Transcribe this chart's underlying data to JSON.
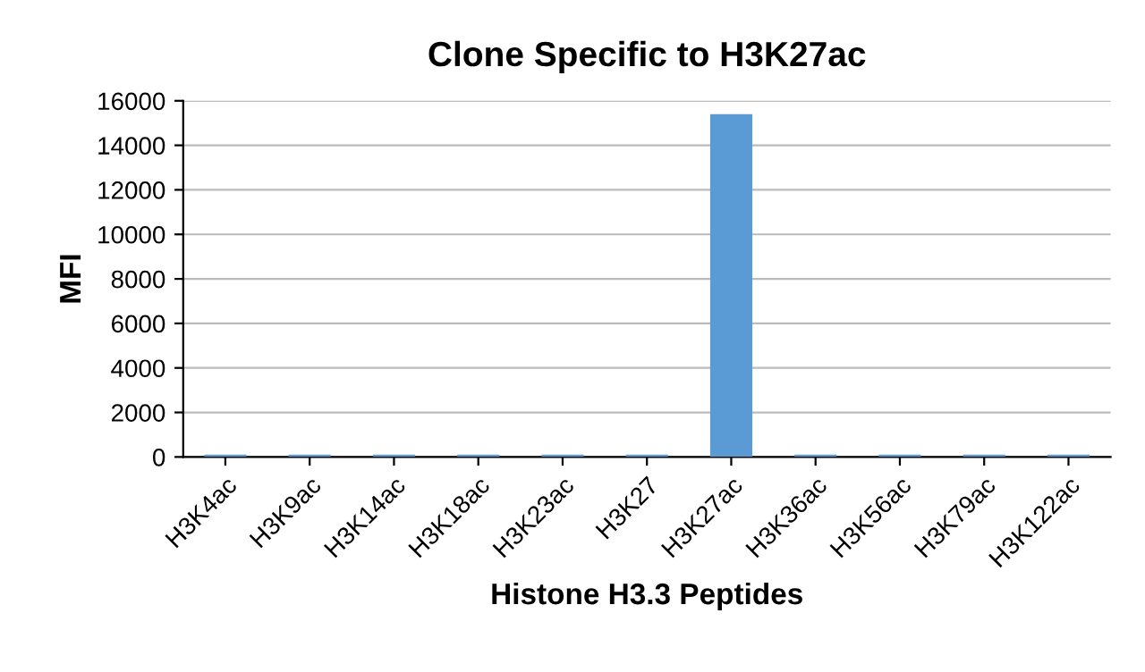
{
  "chart_data": {
    "type": "bar",
    "title": "Clone Specific to H3K27ac",
    "xlabel": "Histone H3.3 Peptides",
    "ylabel": "MFI",
    "categories": [
      "H3K4ac",
      "H3K9ac",
      "H3K14ac",
      "H3K18ac",
      "H3K23ac",
      "H3K27",
      "H3K27ac",
      "H3K36ac",
      "H3K56ac",
      "H3K79ac",
      "H3K122ac"
    ],
    "values": [
      100,
      100,
      100,
      100,
      100,
      100,
      15400,
      100,
      100,
      100,
      100
    ],
    "color": "#5b9bd5",
    "ylim": [
      0,
      16000
    ],
    "yticks": [
      0,
      2000,
      4000,
      6000,
      8000,
      10000,
      12000,
      14000,
      16000
    ],
    "grid": "y",
    "legend": false
  }
}
